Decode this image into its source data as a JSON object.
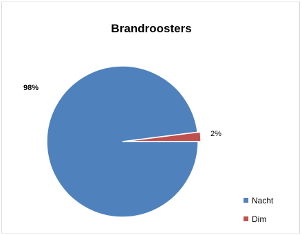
{
  "chart_data": {
    "type": "pie",
    "title": "Brandroosters",
    "categories": [
      "Nacht",
      "Dim"
    ],
    "values": [
      98,
      2
    ],
    "data_labels": [
      "98%",
      "2%"
    ],
    "colors": [
      "#4f81bd",
      "#c0504d"
    ],
    "legend": {
      "position": "bottom-right",
      "entries": [
        "Nacht",
        "Dim"
      ]
    },
    "exploded_slice": "Dim"
  }
}
